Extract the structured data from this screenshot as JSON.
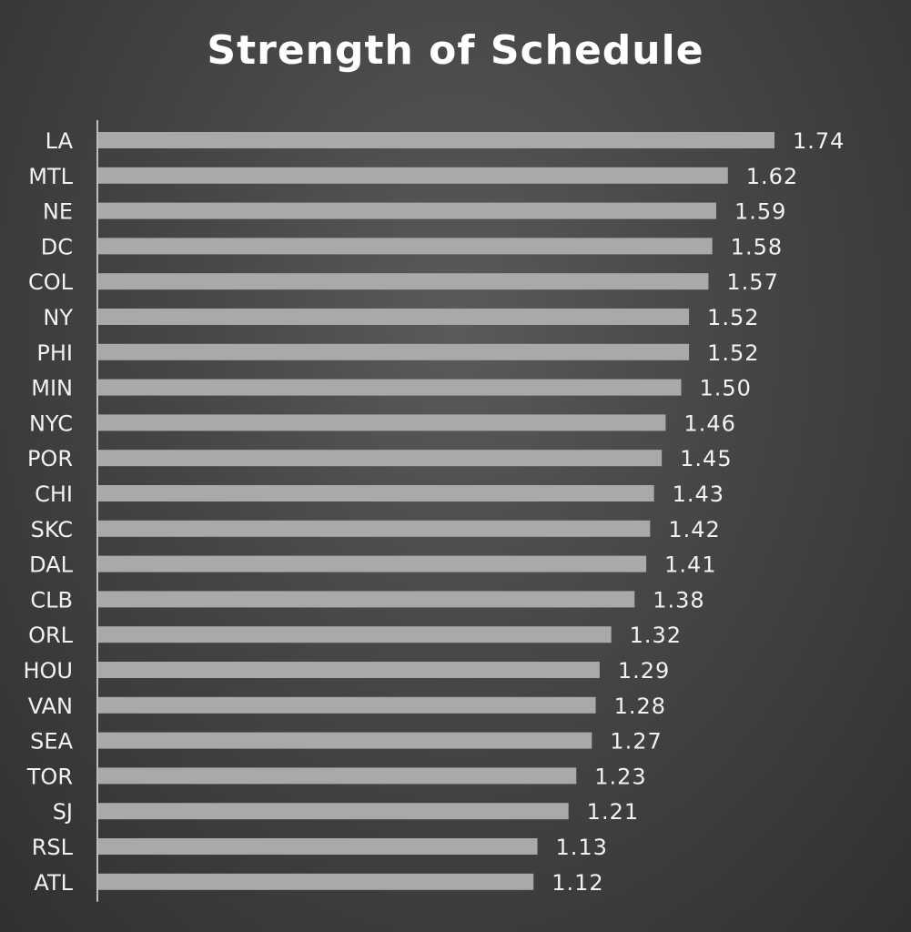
{
  "chart_data": {
    "type": "bar",
    "orientation": "horizontal",
    "title": "Strength of Schedule",
    "xlabel": "",
    "ylabel": "",
    "xlim": [
      0,
      1.74
    ],
    "grid": false,
    "categories": [
      "LA",
      "MTL",
      "NE",
      "DC",
      "COL",
      "NY",
      "PHI",
      "MIN",
      "NYC",
      "POR",
      "CHI",
      "SKC",
      "DAL",
      "CLB",
      "ORL",
      "HOU",
      "VAN",
      "SEA",
      "TOR",
      "SJ",
      "RSL",
      "ATL"
    ],
    "values": [
      1.74,
      1.62,
      1.59,
      1.58,
      1.57,
      1.52,
      1.52,
      1.5,
      1.46,
      1.45,
      1.43,
      1.42,
      1.41,
      1.38,
      1.32,
      1.29,
      1.28,
      1.27,
      1.23,
      1.21,
      1.13,
      1.12
    ],
    "value_labels": [
      "1.74",
      "1.62",
      "1.59",
      "1.58",
      "1.57",
      "1.52",
      "1.52",
      "1.50",
      "1.46",
      "1.45",
      "1.43",
      "1.42",
      "1.41",
      "1.38",
      "1.32",
      "1.29",
      "1.28",
      "1.27",
      "1.23",
      "1.21",
      "1.13",
      "1.12"
    ],
    "colors": {
      "bar": "#a9a9a9",
      "text": "#f2f2f2",
      "axis": "#bdbdbd"
    }
  }
}
